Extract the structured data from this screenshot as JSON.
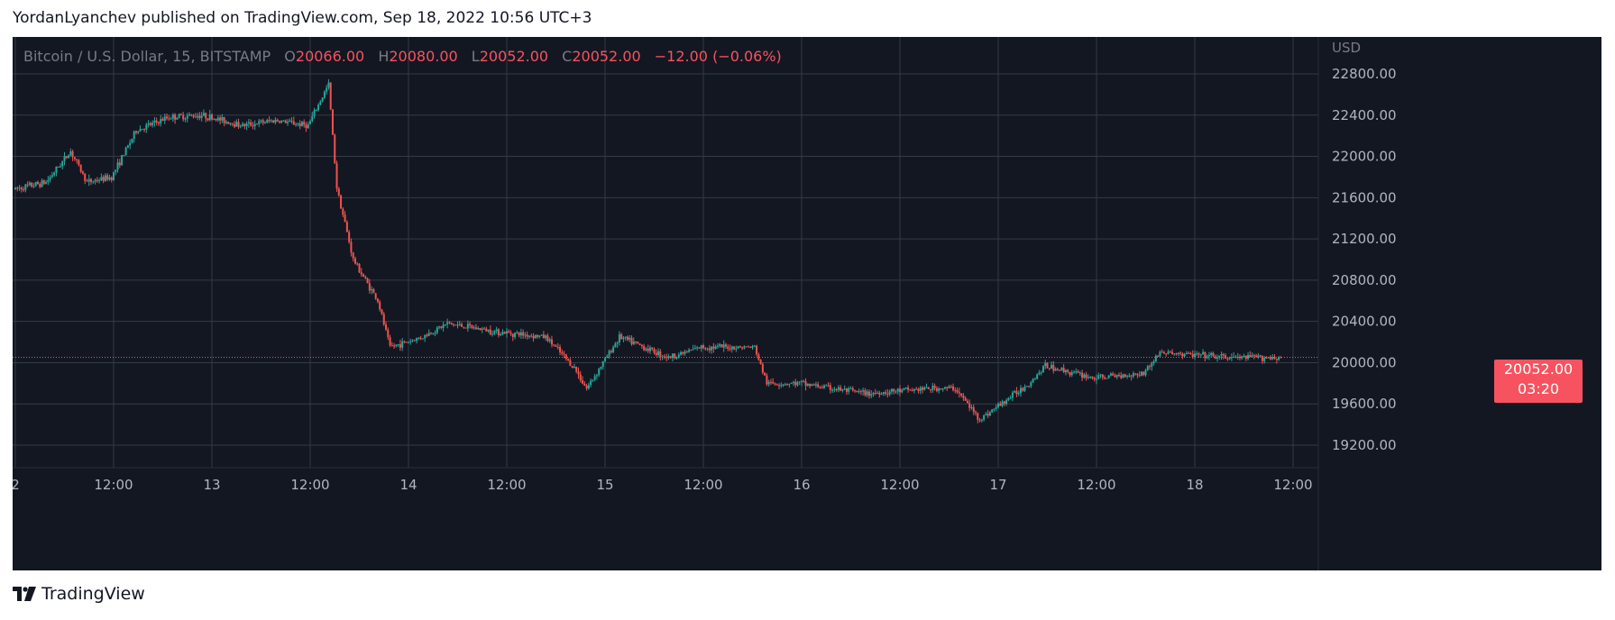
{
  "header": {
    "text": "YordanLyanchev published on TradingView.com, Sep 18, 2022 10:56 UTC+3"
  },
  "legend": {
    "symbol": "Bitcoin / U.S. Dollar, 15, BITSTAMP",
    "o_label": "O",
    "o_value": "20066.00",
    "h_label": "H",
    "h_value": "20080.00",
    "l_label": "L",
    "l_value": "20052.00",
    "c_label": "C",
    "c_value": "20052.00",
    "change": "−12.00 (−0.06%)"
  },
  "price_tag": {
    "price": "20052.00",
    "countdown": "03:20"
  },
  "footer": {
    "brand": "TradingView"
  },
  "colors": {
    "background": "#131722",
    "grid": "#363a45",
    "up": "#26a69a",
    "down": "#ef5350",
    "text": "#b2b5be",
    "accent": "#f7525f"
  },
  "chart_data": {
    "type": "candlestick",
    "currency_label": "USD",
    "y_ticks": [
      "22800.00",
      "22400.00",
      "22000.00",
      "21600.00",
      "21200.00",
      "20800.00",
      "20400.00",
      "20000.00",
      "19600.00",
      "19200.00"
    ],
    "x_ticks": [
      "2",
      "12:00",
      "13",
      "12:00",
      "14",
      "12:00",
      "15",
      "12:00",
      "16",
      "12:00",
      "17",
      "12:00",
      "18",
      "12:00"
    ],
    "ylim": [
      19000,
      23100
    ],
    "last_price": 20052,
    "price_path": [
      [
        "Sep 12 00:00",
        21680
      ],
      [
        "Sep 12 04:00",
        21750
      ],
      [
        "Sep 12 07:00",
        22050
      ],
      [
        "Sep 12 09:00",
        21750
      ],
      [
        "Sep 12 12:00",
        21800
      ],
      [
        "Sep 12 15:00",
        22250
      ],
      [
        "Sep 12 19:00",
        22380
      ],
      [
        "Sep 12 23:00",
        22400
      ],
      [
        "Sep 13 04:00",
        22300
      ],
      [
        "Sep 13 08:00",
        22350
      ],
      [
        "Sep 13 12:00",
        22300
      ],
      [
        "Sep 13 14:30",
        22700
      ],
      [
        "Sep 13 15:30",
        21700
      ],
      [
        "Sep 13 17:30",
        21000
      ],
      [
        "Sep 13 20:30",
        20600
      ],
      [
        "Sep 13 22:00",
        20150
      ],
      [
        "Sep 14 02:00",
        20250
      ],
      [
        "Sep 14 05:00",
        20380
      ],
      [
        "Sep 14 11:00",
        20300
      ],
      [
        "Sep 14 17:00",
        20250
      ],
      [
        "Sep 14 20:30",
        19950
      ],
      [
        "Sep 14 22:00",
        19750
      ],
      [
        "Sep 15 02:00",
        20250
      ],
      [
        "Sep 15 08:00",
        20050
      ],
      [
        "Sep 15 12:00",
        20150
      ],
      [
        "Sep 15 18:30",
        20150
      ],
      [
        "Sep 15 20:00",
        19800
      ],
      [
        "Sep 16 00:00",
        19800
      ],
      [
        "Sep 16 08:00",
        19700
      ],
      [
        "Sep 16 16:00",
        19750
      ],
      [
        "Sep 16 19:00",
        19750
      ],
      [
        "Sep 16 22:00",
        19450
      ],
      [
        "Sep 17 04:00",
        19800
      ],
      [
        "Sep 17 06:00",
        19970
      ],
      [
        "Sep 17 12:00",
        19850
      ],
      [
        "Sep 17 18:00",
        19900
      ],
      [
        "Sep 17 20:00",
        20100
      ],
      [
        "Sep 18 04:00",
        20050
      ],
      [
        "Sep 18 10:30",
        20052
      ]
    ]
  }
}
